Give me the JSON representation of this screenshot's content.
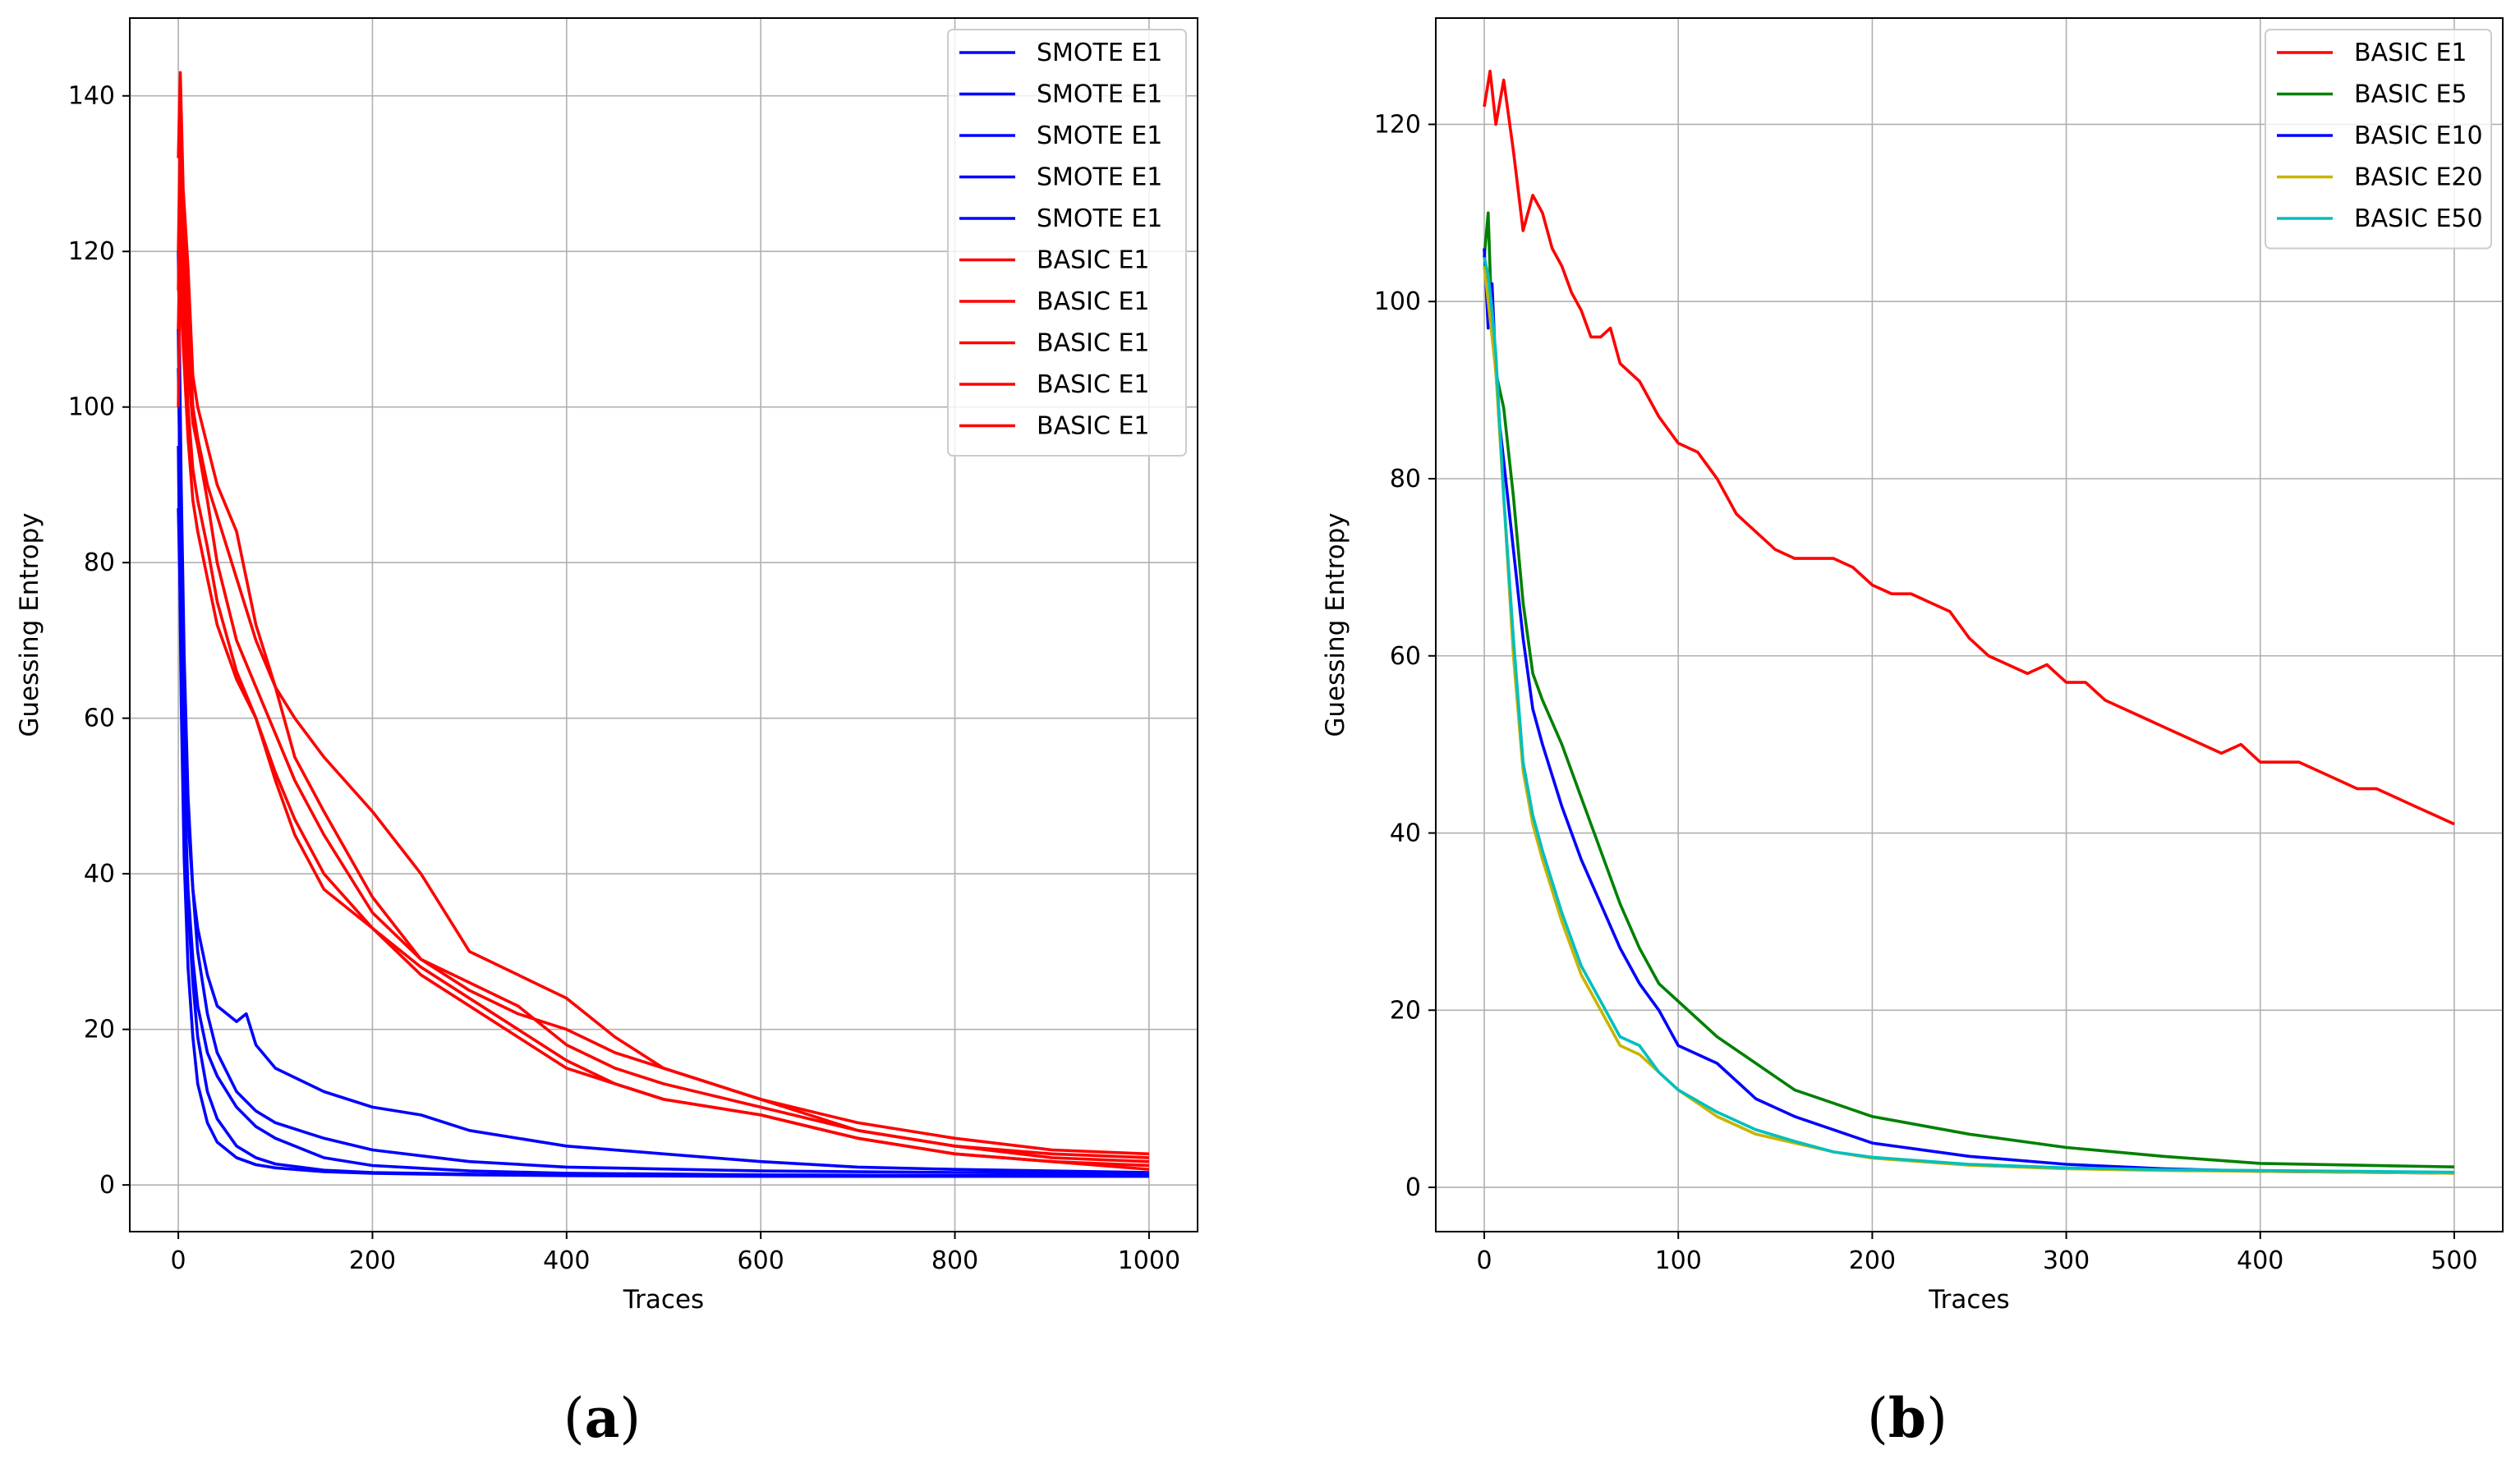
{
  "chart_data": [
    {
      "type": "line",
      "caption_open": "(",
      "caption_letter": "a",
      "caption_close": ")",
      "xlabel": "Traces",
      "ylabel": "Guessing Entropy",
      "xlim": [
        -50,
        1050
      ],
      "ylim": [
        -6,
        150
      ],
      "xticks": [
        0,
        200,
        400,
        600,
        800,
        1000
      ],
      "yticks": [
        0,
        20,
        40,
        60,
        80,
        100,
        120,
        140
      ],
      "grid": true,
      "legend_position": "top-right",
      "series": [
        {
          "name": "SMOTE E1",
          "color": "#0000ff",
          "x": [
            0,
            3,
            6,
            10,
            15,
            20,
            30,
            40,
            60,
            80,
            100,
            150,
            200,
            300,
            400,
            600,
            800,
            1000
          ],
          "values": [
            95,
            62,
            42,
            28,
            19,
            13,
            8,
            5.5,
            3.5,
            2.6,
            2.2,
            1.7,
            1.5,
            1.3,
            1.2,
            1.1,
            1.1,
            1.1
          ]
        },
        {
          "name": "SMOTE E1",
          "color": "#0000ff",
          "x": [
            0,
            3,
            6,
            10,
            15,
            20,
            30,
            40,
            60,
            80,
            100,
            150,
            200,
            300,
            400,
            600,
            800,
            1000
          ],
          "values": [
            110,
            75,
            52,
            36,
            26,
            19,
            12,
            8.5,
            5,
            3.5,
            2.7,
            1.9,
            1.6,
            1.4,
            1.3,
            1.2,
            1.2,
            1.2
          ]
        },
        {
          "name": "SMOTE E1",
          "color": "#0000ff",
          "x": [
            0,
            3,
            6,
            10,
            15,
            20,
            30,
            40,
            60,
            80,
            100,
            150,
            200,
            300,
            400,
            600,
            800,
            1000
          ],
          "values": [
            120,
            90,
            68,
            50,
            38,
            30,
            22,
            17,
            12,
            9.5,
            8,
            6,
            4.5,
            3,
            2.3,
            1.8,
            1.6,
            1.5
          ]
        },
        {
          "name": "SMOTE E1",
          "color": "#0000ff",
          "x": [
            0,
            3,
            6,
            10,
            15,
            20,
            30,
            40,
            60,
            70,
            80,
            100,
            150,
            200,
            250,
            300,
            400,
            500,
            600,
            700,
            800,
            1000
          ],
          "values": [
            105,
            82,
            62,
            47,
            38,
            33,
            27,
            23,
            21,
            22,
            18,
            15,
            12,
            10,
            9,
            7,
            5,
            4,
            3,
            2.3,
            2,
            1.6
          ]
        },
        {
          "name": "SMOTE E1",
          "color": "#0000ff",
          "x": [
            0,
            3,
            6,
            10,
            15,
            20,
            30,
            40,
            60,
            80,
            100,
            150,
            200,
            300,
            400,
            600,
            800,
            1000
          ],
          "values": [
            87,
            70,
            52,
            38,
            29,
            23,
            17,
            14,
            10,
            7.5,
            6,
            3.5,
            2.5,
            1.8,
            1.5,
            1.3,
            1.2,
            1.2
          ]
        },
        {
          "name": "BASIC E1",
          "color": "#ff0000",
          "x": [
            0,
            2,
            5,
            10,
            15,
            20,
            30,
            40,
            60,
            80,
            100,
            120,
            150,
            200,
            250,
            300,
            350,
            400,
            450,
            500,
            600,
            700,
            800,
            900,
            1000
          ],
          "values": [
            132,
            143,
            128,
            118,
            104,
            100,
            95,
            90,
            84,
            72,
            64,
            60,
            55,
            48,
            40,
            30,
            27,
            24,
            19,
            15,
            11,
            8,
            6,
            4.5,
            4
          ]
        },
        {
          "name": "BASIC E1",
          "color": "#ff0000",
          "x": [
            0,
            2,
            5,
            10,
            15,
            20,
            30,
            40,
            60,
            80,
            100,
            120,
            150,
            200,
            250,
            300,
            350,
            400,
            450,
            500,
            600,
            700,
            800,
            900,
            1000
          ],
          "values": [
            120,
            135,
            125,
            112,
            100,
            96,
            90,
            86,
            78,
            70,
            64,
            55,
            48,
            37,
            29,
            25,
            22,
            20,
            17,
            15,
            11,
            7,
            5,
            4,
            3.5
          ]
        },
        {
          "name": "BASIC E1",
          "color": "#ff0000",
          "x": [
            0,
            2,
            5,
            10,
            15,
            20,
            30,
            40,
            60,
            80,
            100,
            120,
            150,
            200,
            250,
            300,
            350,
            400,
            450,
            500,
            600,
            700,
            800,
            900,
            1000
          ],
          "values": [
            115,
            130,
            118,
            105,
            98,
            95,
            88,
            80,
            70,
            64,
            58,
            52,
            45,
            35,
            29,
            26,
            23,
            18,
            15,
            13,
            10,
            7,
            5,
            3.5,
            3
          ]
        },
        {
          "name": "BASIC E1",
          "color": "#ff0000",
          "x": [
            0,
            2,
            5,
            10,
            15,
            20,
            30,
            40,
            60,
            80,
            100,
            120,
            150,
            200,
            250,
            300,
            350,
            400,
            450,
            500,
            600,
            700,
            800,
            900,
            1000
          ],
          "values": [
            110,
            125,
            112,
            100,
            92,
            88,
            82,
            75,
            66,
            60,
            53,
            47,
            40,
            33,
            27,
            23,
            19,
            15,
            13,
            11,
            9,
            6,
            4,
            3,
            2.5
          ]
        },
        {
          "name": "BASIC E1",
          "color": "#ff0000",
          "x": [
            0,
            2,
            5,
            10,
            15,
            20,
            30,
            40,
            60,
            80,
            100,
            120,
            150,
            200,
            250,
            300,
            350,
            400,
            450,
            500,
            600,
            700,
            800,
            900,
            1000
          ],
          "values": [
            100,
            118,
            108,
            96,
            88,
            84,
            78,
            72,
            65,
            60,
            52,
            45,
            38,
            33,
            28,
            24,
            20,
            16,
            13,
            11,
            9,
            6,
            4,
            3,
            2
          ]
        }
      ]
    },
    {
      "type": "line",
      "caption_open": "(",
      "caption_letter": "b",
      "caption_close": ")",
      "xlabel": "Traces",
      "ylabel": "Guessing Entropy",
      "xlim": [
        -25,
        525
      ],
      "ylim": [
        -5,
        132
      ],
      "xticks": [
        0,
        100,
        200,
        300,
        400,
        500
      ],
      "yticks": [
        0,
        20,
        40,
        60,
        80,
        100,
        120
      ],
      "grid": true,
      "legend_position": "top-right",
      "series": [
        {
          "name": "BASIC E1",
          "color": "#ff0000",
          "x": [
            0,
            3,
            6,
            10,
            15,
            20,
            25,
            30,
            35,
            40,
            45,
            50,
            55,
            60,
            65,
            70,
            75,
            80,
            90,
            100,
            110,
            120,
            130,
            140,
            150,
            160,
            170,
            180,
            190,
            200,
            210,
            220,
            230,
            240,
            250,
            260,
            270,
            280,
            290,
            300,
            310,
            320,
            330,
            340,
            350,
            360,
            370,
            380,
            390,
            400,
            410,
            420,
            430,
            440,
            450,
            460,
            470,
            480,
            490,
            500
          ],
          "values": [
            122,
            126,
            120,
            125,
            117,
            108,
            112,
            110,
            106,
            104,
            101,
            99,
            96,
            96,
            97,
            93,
            92,
            91,
            87,
            84,
            83,
            80,
            76,
            74,
            72,
            71,
            71,
            71,
            70,
            68,
            67,
            67,
            66,
            65,
            62,
            60,
            59,
            58,
            59,
            57,
            57,
            55,
            54,
            53,
            52,
            51,
            50,
            49,
            50,
            48,
            48,
            48,
            47,
            46,
            45,
            45,
            44,
            43,
            42,
            41
          ]
        },
        {
          "name": "BASIC E5",
          "color": "#008000",
          "x": [
            0,
            2,
            4,
            6,
            8,
            10,
            15,
            20,
            25,
            30,
            40,
            50,
            60,
            70,
            80,
            90,
            100,
            120,
            140,
            160,
            180,
            200,
            250,
            300,
            350,
            400,
            450,
            500
          ],
          "values": [
            105,
            110,
            97,
            92,
            90,
            88,
            78,
            66,
            58,
            55,
            50,
            44,
            38,
            32,
            27,
            23,
            21,
            17,
            14,
            11,
            9.5,
            8,
            6,
            4.5,
            3.5,
            2.7,
            2.5,
            2.3
          ]
        },
        {
          "name": "BASIC E10",
          "color": "#0000ff",
          "x": [
            0,
            2,
            4,
            6,
            8,
            10,
            15,
            20,
            25,
            30,
            40,
            50,
            60,
            70,
            80,
            90,
            100,
            120,
            140,
            160,
            180,
            200,
            250,
            300,
            350,
            400,
            450,
            500
          ],
          "values": [
            106,
            97,
            102,
            92,
            86,
            82,
            72,
            62,
            54,
            50,
            43,
            37,
            32,
            27,
            23,
            20,
            16,
            14,
            10,
            8,
            6.5,
            5,
            3.5,
            2.6,
            2.1,
            1.8,
            1.7,
            1.6
          ]
        },
        {
          "name": "BASIC E20",
          "color": "#c8b400",
          "x": [
            0,
            2,
            4,
            6,
            8,
            10,
            15,
            20,
            25,
            30,
            40,
            50,
            60,
            70,
            80,
            90,
            100,
            120,
            140,
            160,
            180,
            200,
            250,
            300,
            350,
            400,
            450,
            500
          ],
          "values": [
            104,
            100,
            96,
            92,
            85,
            78,
            60,
            47,
            41,
            37,
            30,
            24,
            20,
            16,
            15,
            13,
            11,
            8,
            6,
            5,
            4,
            3.3,
            2.5,
            2.1,
            1.9,
            1.8,
            1.7,
            1.6
          ]
        },
        {
          "name": "BASIC E50",
          "color": "#00bfbf",
          "x": [
            0,
            2,
            4,
            6,
            8,
            10,
            15,
            20,
            25,
            30,
            40,
            50,
            60,
            70,
            80,
            90,
            100,
            120,
            140,
            160,
            180,
            200,
            250,
            300,
            350,
            400,
            450,
            500
          ],
          "values": [
            105,
            103,
            99,
            94,
            86,
            78,
            62,
            48,
            42,
            38,
            31,
            25,
            21,
            17,
            16,
            13,
            11,
            8.5,
            6.5,
            5.2,
            4,
            3.4,
            2.6,
            2.2,
            2,
            1.9,
            1.8,
            1.7
          ]
        }
      ]
    }
  ]
}
